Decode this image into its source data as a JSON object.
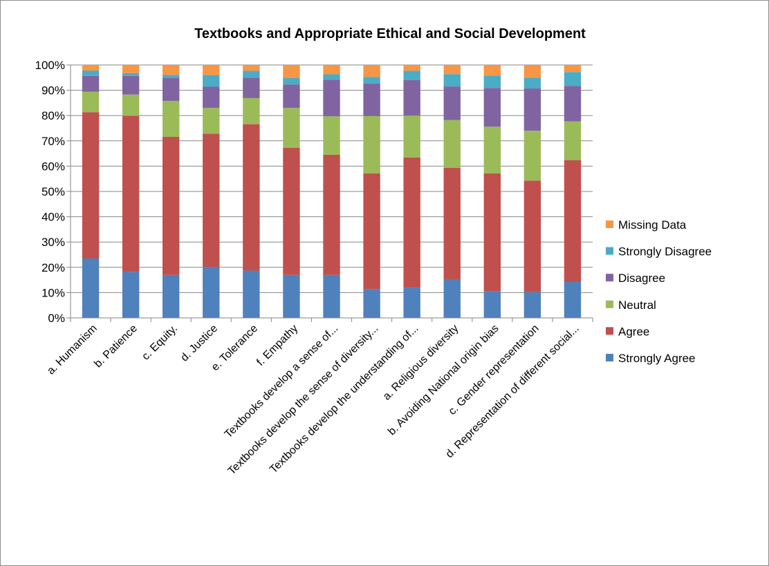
{
  "chart_data": {
    "type": "bar",
    "stacked": true,
    "percent": true,
    "title": "Textbooks and Appropriate Ethical and Social Development",
    "xlabel": "",
    "ylabel": "",
    "ylim": [
      0,
      100
    ],
    "yticks": [
      "0%",
      "10%",
      "20%",
      "30%",
      "40%",
      "50%",
      "60%",
      "70%",
      "80%",
      "90%",
      "100%"
    ],
    "grid": true,
    "legend_position": "right",
    "categories": [
      "a. Humanism",
      "b. Patience",
      "c. Equity.",
      "d. Justice",
      "e. Tolerance",
      "f. Empathy",
      "Textbooks develop a sense of...",
      "Textbooks develop the sense of diversity...",
      "Textbooks develop the understanding of...",
      "a. Religious diversity",
      "b. Avoiding National origin bias",
      "c. Gender representation",
      "d. Representation of different social..."
    ],
    "series": [
      {
        "name": "Strongly Agree",
        "color": "#4F81BD",
        "values": [
          23.5,
          18.2,
          17.0,
          20.2,
          18.7,
          17.0,
          17.0,
          11.4,
          12.0,
          15.3,
          10.6,
          10.2,
          14.2
        ]
      },
      {
        "name": "Agree",
        "color": "#C0504D",
        "values": [
          57.8,
          61.7,
          54.6,
          52.6,
          57.9,
          50.3,
          47.5,
          45.7,
          51.4,
          44.0,
          46.5,
          44.1,
          48.2
        ]
      },
      {
        "name": "Neutral",
        "color": "#9BBB59",
        "values": [
          8.1,
          8.4,
          14.2,
          10.2,
          10.3,
          15.7,
          15.2,
          22.7,
          16.6,
          18.9,
          18.5,
          19.7,
          15.3
        ]
      },
      {
        "name": "Disagree",
        "color": "#8064A2",
        "values": [
          6.3,
          7.4,
          9.0,
          8.4,
          8.1,
          9.3,
          14.5,
          12.9,
          14.0,
          13.3,
          15.3,
          16.7,
          14.0
        ]
      },
      {
        "name": "Strongly Disagree",
        "color": "#4BACC6",
        "values": [
          2.1,
          1.1,
          1.3,
          4.6,
          2.7,
          2.5,
          2.1,
          2.6,
          3.7,
          4.9,
          4.9,
          4.3,
          5.5
        ]
      },
      {
        "name": "Missing Data",
        "color": "#F79646",
        "values": [
          2.2,
          3.2,
          3.9,
          4.0,
          2.3,
          5.2,
          3.7,
          4.7,
          2.3,
          3.6,
          4.2,
          5.0,
          2.8
        ]
      }
    ]
  }
}
